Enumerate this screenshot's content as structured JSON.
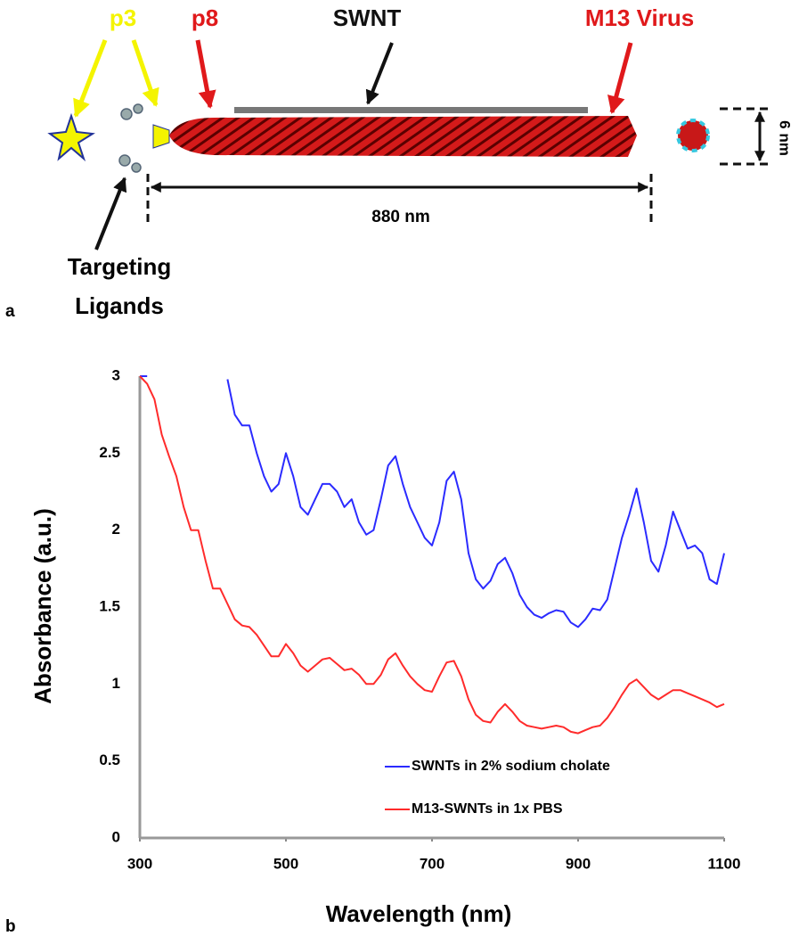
{
  "diagram": {
    "panel_label": "a",
    "labels": {
      "p3": "p3",
      "p8": "p8",
      "swnt": "SWNT",
      "virus": "M13 Virus",
      "diameter": "6 nm",
      "length": "880 nm",
      "ligands_1": "Targeting",
      "ligands_2": "Ligands"
    }
  },
  "chart_data": {
    "type": "line",
    "panel_label": "b",
    "x_label": "Wavelength (nm)",
    "y_label": "Absorbance (a.u.)",
    "xlim": [
      300,
      1100
    ],
    "xticks": [
      300,
      500,
      700,
      900,
      1100
    ],
    "ylim": [
      0,
      3
    ],
    "yticks": [
      0,
      0.5,
      1,
      1.5,
      2,
      2.5,
      3
    ],
    "grid": false,
    "legend": "lower right",
    "x": [
      300,
      310,
      320,
      330,
      340,
      350,
      360,
      370,
      380,
      390,
      400,
      410,
      420,
      430,
      440,
      450,
      460,
      470,
      480,
      490,
      500,
      510,
      520,
      530,
      540,
      550,
      560,
      570,
      580,
      590,
      600,
      610,
      620,
      630,
      640,
      650,
      660,
      670,
      680,
      690,
      700,
      710,
      720,
      730,
      740,
      750,
      760,
      770,
      780,
      790,
      800,
      810,
      820,
      830,
      840,
      850,
      860,
      870,
      880,
      890,
      900,
      910,
      920,
      930,
      940,
      950,
      960,
      970,
      980,
      990,
      1000,
      1010,
      1020,
      1030,
      1040,
      1050,
      1060,
      1070,
      1080,
      1090,
      1100
    ],
    "series": [
      {
        "name": "SWNTs in 2% sodium cholate",
        "color": "#2b2bff",
        "values": [
          3.0,
          3.0,
          null,
          null,
          null,
          null,
          null,
          null,
          null,
          null,
          null,
          null,
          2.98,
          2.75,
          2.68,
          2.68,
          2.5,
          2.35,
          2.25,
          2.3,
          2.5,
          2.35,
          2.15,
          2.1,
          2.2,
          2.3,
          2.3,
          2.25,
          2.15,
          2.2,
          2.05,
          1.97,
          2.0,
          2.2,
          2.42,
          2.48,
          2.3,
          2.15,
          2.05,
          1.95,
          1.9,
          2.05,
          2.32,
          2.38,
          2.2,
          1.85,
          1.68,
          1.62,
          1.67,
          1.78,
          1.82,
          1.72,
          1.58,
          1.5,
          1.45,
          1.43,
          1.46,
          1.48,
          1.47,
          1.4,
          1.37,
          1.42,
          1.49,
          1.48,
          1.55,
          1.75,
          1.95,
          2.1,
          2.27,
          2.05,
          1.8,
          1.73,
          1.9,
          2.12,
          2.0,
          1.88,
          1.9,
          1.85,
          1.68,
          1.65,
          1.85
        ]
      },
      {
        "name": "M13-SWNTs in 1x PBS",
        "color": "#ff2b2b",
        "values": [
          3.0,
          2.95,
          2.85,
          2.62,
          2.48,
          2.35,
          2.15,
          2.0,
          2.0,
          1.8,
          1.62,
          1.62,
          1.52,
          1.42,
          1.38,
          1.37,
          1.32,
          1.25,
          1.18,
          1.18,
          1.26,
          1.2,
          1.12,
          1.08,
          1.12,
          1.16,
          1.17,
          1.13,
          1.09,
          1.1,
          1.06,
          1.0,
          1.0,
          1.06,
          1.16,
          1.2,
          1.12,
          1.05,
          1.0,
          0.96,
          0.95,
          1.05,
          1.14,
          1.15,
          1.05,
          0.9,
          0.8,
          0.76,
          0.75,
          0.82,
          0.87,
          0.82,
          0.76,
          0.73,
          0.72,
          0.71,
          0.72,
          0.73,
          0.72,
          0.69,
          0.68,
          0.7,
          0.72,
          0.73,
          0.78,
          0.85,
          0.93,
          1.0,
          1.03,
          0.98,
          0.93,
          0.9,
          0.93,
          0.96,
          0.96,
          0.94,
          0.92,
          0.9,
          0.88,
          0.85,
          0.87
        ]
      }
    ]
  }
}
